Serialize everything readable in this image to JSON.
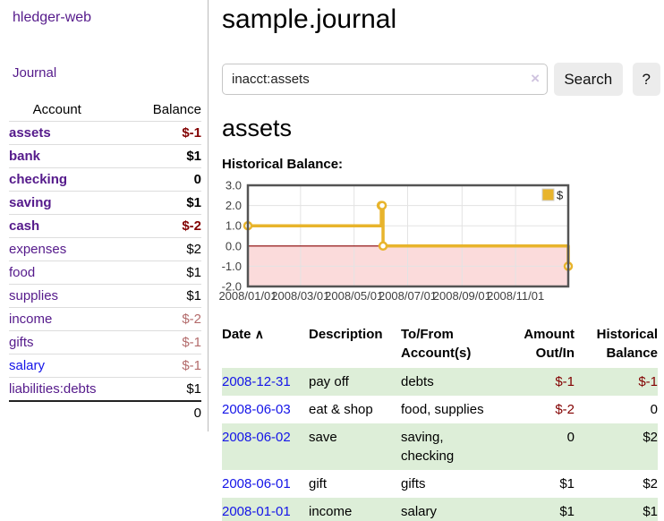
{
  "app": {
    "brand": "hledger-web"
  },
  "sidebar": {
    "journal_link": "Journal",
    "accounts": {
      "headers": {
        "account": "Account",
        "balance": "Balance"
      },
      "rows": [
        {
          "name": "assets",
          "depth": 1,
          "balance": "$-1",
          "bold": true,
          "neg": "strong",
          "link": "purple"
        },
        {
          "name": "bank",
          "depth": 2,
          "balance": "$1",
          "bold": true,
          "neg": "none",
          "link": "purple"
        },
        {
          "name": "checking",
          "depth": 3,
          "balance": "0",
          "bold": true,
          "neg": "none",
          "link": "purple"
        },
        {
          "name": "saving",
          "depth": 3,
          "balance": "$1",
          "bold": true,
          "neg": "none",
          "link": "purple"
        },
        {
          "name": "cash",
          "depth": 2,
          "balance": "$-2",
          "bold": true,
          "neg": "strong",
          "link": "purple"
        },
        {
          "name": "expenses",
          "depth": 1,
          "balance": "$2",
          "bold": false,
          "neg": "none",
          "link": "purple"
        },
        {
          "name": "food",
          "depth": 2,
          "balance": "$1",
          "bold": false,
          "neg": "none",
          "link": "purple"
        },
        {
          "name": "supplies",
          "depth": 2,
          "balance": "$1",
          "bold": false,
          "neg": "none",
          "link": "purple"
        },
        {
          "name": "income",
          "depth": 1,
          "balance": "$-2",
          "bold": false,
          "neg": "muted",
          "link": "purple"
        },
        {
          "name": "gifts",
          "depth": 2,
          "balance": "$-1",
          "bold": false,
          "neg": "muted",
          "link": "purple"
        },
        {
          "name": "salary",
          "depth": 2,
          "balance": "$-1",
          "bold": false,
          "neg": "muted",
          "link": "blue"
        },
        {
          "name": "liabilities:debts",
          "depth": 1,
          "balance": "$1",
          "bold": false,
          "neg": "none",
          "link": "purple"
        }
      ],
      "total": "0"
    }
  },
  "main": {
    "title": "sample.journal",
    "search": {
      "value": "inacct:assets",
      "clear_icon": "×",
      "button_label": "Search",
      "help_label": "?"
    },
    "account_heading": "assets",
    "chart_label": "Historical Balance:"
  },
  "chart_data": {
    "type": "line",
    "step": true,
    "title": "Historical Balance",
    "series": [
      {
        "name": "$",
        "color": "#e8b42c",
        "points": [
          [
            "2008-01-01",
            1
          ],
          [
            "2008-06-01",
            2
          ],
          [
            "2008-06-02",
            2
          ],
          [
            "2008-06-03",
            0
          ],
          [
            "2008-12-31",
            -1
          ]
        ]
      }
    ],
    "x_domain": [
      "2008-01-01",
      "2008-12-31"
    ],
    "x_ticks": [
      {
        "label": "2008/01/01",
        "date": "2008-01-01"
      },
      {
        "label": "2008/03/01",
        "date": "2008-03-01"
      },
      {
        "label": "2008/05/01",
        "date": "2008-05-01"
      },
      {
        "label": "2008/07/01",
        "date": "2008-07-01"
      },
      {
        "label": "2008/09/01",
        "date": "2008-09-01"
      },
      {
        "label": "2008/11/01",
        "date": "2008-11-01"
      }
    ],
    "y_ticks": [
      {
        "label": "3.0",
        "v": 3
      },
      {
        "label": "2.0",
        "v": 2
      },
      {
        "label": "1.0",
        "v": 1
      },
      {
        "label": "0.0",
        "v": 0
      },
      {
        "label": "-1.0",
        "v": -1
      },
      {
        "label": "-2.0",
        "v": -2
      }
    ],
    "ylim": [
      -2,
      3
    ],
    "grid": true,
    "legend": {
      "label": "$",
      "position": "top-right"
    },
    "colors": {
      "line": "#e8b42c",
      "marker_fill": "#ffffff",
      "negative_region": "#fbdbdb",
      "zero_line": "#8b0000",
      "grid": "#e3e3e3",
      "border": "#545454"
    }
  },
  "transactions": {
    "headers": {
      "date": "Date",
      "sort_caret": "∧",
      "description": "Description",
      "accounts": "To/From Account(s)",
      "amount": "Amount Out/In",
      "balance": "Historical Balance"
    },
    "rows": [
      {
        "date": "2008-12-31",
        "description": "pay off",
        "accounts": "debts",
        "amount": "$-1",
        "balance": "$-1"
      },
      {
        "date": "2008-06-03",
        "description": "eat & shop",
        "accounts": "food, supplies",
        "amount": "$-2",
        "balance": "0"
      },
      {
        "date": "2008-06-02",
        "description": "save",
        "accounts": "saving, checking",
        "amount": "0",
        "balance": "$2"
      },
      {
        "date": "2008-06-01",
        "description": "gift",
        "accounts": "gifts",
        "amount": "$1",
        "balance": "$2"
      },
      {
        "date": "2008-01-01",
        "description": "income",
        "accounts": "salary",
        "amount": "$1",
        "balance": "$1"
      }
    ]
  }
}
